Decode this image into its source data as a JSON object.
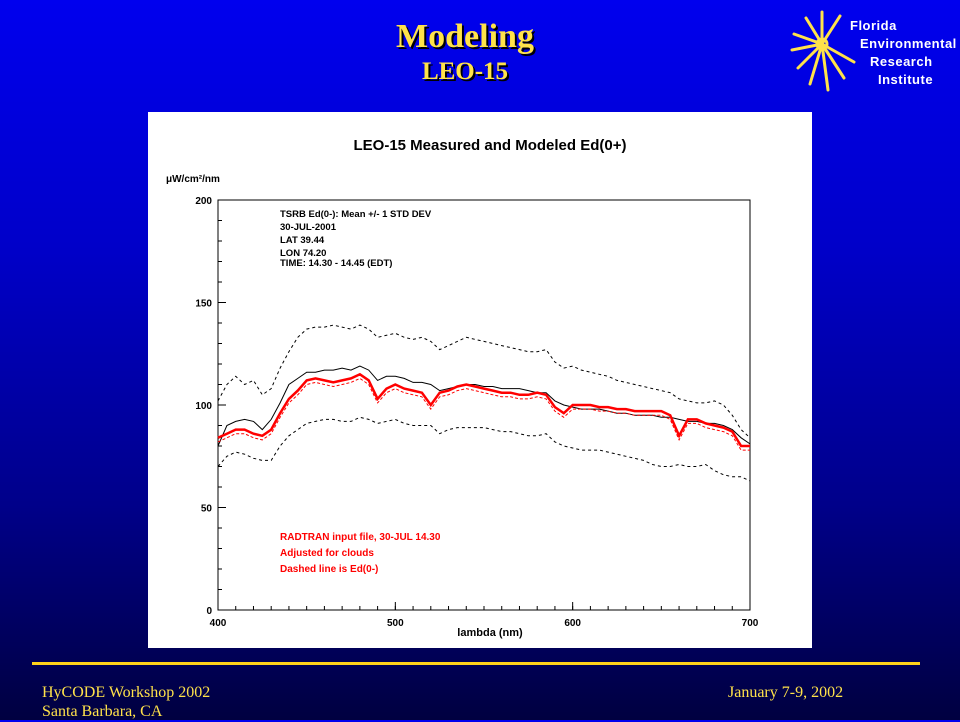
{
  "slide": {
    "title": "Modeling",
    "subtitle": "LEO-15"
  },
  "logo": {
    "lines": [
      "Florida",
      "Environmental",
      "Research",
      "Institute"
    ]
  },
  "footer": {
    "left_line1": "HyCODE Workshop 2002",
    "left_line2": "Santa Barbara, CA",
    "right": "January 7-9, 2002"
  },
  "colors": {
    "title": "#ffe24a",
    "measured": "#000000",
    "modeled": "#ff0000",
    "rule": "#ffd21a"
  },
  "chart_data": {
    "type": "line",
    "title": "LEO-15 Measured and Modeled Ed(0+)",
    "xlabel": "lambda (nm)",
    "ylabel": "μW/cm²/nm",
    "xlim": [
      400,
      700
    ],
    "ylim": [
      0,
      200
    ],
    "xticks": [
      "400",
      "500",
      "600",
      "700"
    ],
    "yticks": [
      "0",
      "50",
      "100",
      "150",
      "200"
    ],
    "grid": false,
    "annotations_black": [
      "TSRB Ed(0-): Mean +/- 1 STD DEV",
      "30-JUL-2001",
      "LAT 39.44",
      "LON 74.20",
      "TIME: 14.30 - 14.45 (EDT)"
    ],
    "annotations_red": [
      "RADTRAN input file, 30-JUL 14.30",
      "Adjusted for clouds",
      "Dashed line is Ed(0-)"
    ],
    "x": [
      400,
      405,
      410,
      415,
      420,
      425,
      430,
      435,
      440,
      445,
      450,
      455,
      460,
      465,
      470,
      475,
      480,
      485,
      490,
      495,
      500,
      505,
      510,
      515,
      520,
      525,
      530,
      535,
      540,
      545,
      550,
      555,
      560,
      565,
      570,
      575,
      580,
      585,
      590,
      595,
      600,
      605,
      610,
      615,
      620,
      625,
      630,
      635,
      640,
      645,
      650,
      655,
      660,
      665,
      670,
      675,
      680,
      685,
      690,
      695,
      700
    ],
    "series": [
      {
        "style": "black-dashed-upper",
        "values": [
          102,
          110,
          114,
          110,
          112,
          105,
          108,
          118,
          126,
          133,
          137,
          138,
          138,
          139,
          138,
          137,
          139,
          137,
          133,
          134,
          135,
          133,
          132,
          133,
          131,
          127,
          129,
          131,
          133,
          132,
          131,
          130,
          129,
          128,
          127,
          126,
          126,
          127,
          121,
          118,
          119,
          117,
          116,
          115,
          114,
          112,
          111,
          110,
          109,
          108,
          107,
          106,
          103,
          102,
          101,
          101,
          102,
          100,
          95,
          88,
          84
        ]
      },
      {
        "style": "black-dashed-lower",
        "values": [
          70,
          75,
          77,
          76,
          74,
          73,
          73,
          80,
          85,
          88,
          91,
          92,
          93,
          93,
          92,
          92,
          94,
          93,
          91,
          92,
          93,
          91,
          90,
          90,
          90,
          86,
          88,
          89,
          89,
          89,
          89,
          88,
          87,
          87,
          86,
          85,
          85,
          86,
          82,
          80,
          79,
          78,
          78,
          78,
          77,
          76,
          75,
          74,
          73,
          71,
          70,
          70,
          71,
          70,
          70,
          71,
          68,
          66,
          65,
          65,
          63
        ]
      },
      {
        "style": "black-solid",
        "values": [
          80,
          90,
          92,
          93,
          92,
          88,
          93,
          101,
          110,
          113,
          116,
          116,
          117,
          117,
          118,
          117,
          119,
          117,
          112,
          114,
          114,
          113,
          111,
          111,
          110,
          107,
          108,
          109,
          110,
          110,
          109,
          109,
          108,
          108,
          108,
          107,
          106,
          106,
          102,
          100,
          99,
          98,
          98,
          98,
          97,
          96,
          96,
          95,
          95,
          95,
          94,
          94,
          93,
          92,
          92,
          91,
          91,
          90,
          88,
          84,
          81
        ]
      },
      {
        "style": "red-solid",
        "values": [
          84,
          86,
          88,
          88,
          86,
          85,
          88,
          96,
          103,
          107,
          112,
          113,
          112,
          111,
          112,
          113,
          115,
          112,
          103,
          108,
          110,
          108,
          107,
          106,
          100,
          106,
          107,
          109,
          110,
          109,
          108,
          107,
          106,
          106,
          105,
          105,
          106,
          105,
          99,
          96,
          100,
          100,
          100,
          99,
          99,
          98,
          98,
          97,
          97,
          97,
          97,
          95,
          85,
          93,
          93,
          91,
          90,
          89,
          87,
          80,
          80
        ]
      },
      {
        "style": "red-dashed",
        "values": [
          82,
          84,
          86,
          86,
          84,
          83,
          86,
          94,
          101,
          105,
          110,
          111,
          110,
          109,
          110,
          111,
          113,
          110,
          101,
          106,
          108,
          106,
          105,
          104,
          98,
          104,
          105,
          107,
          108,
          107,
          106,
          105,
          104,
          104,
          103,
          103,
          104,
          103,
          97,
          94,
          98,
          98,
          98,
          97,
          97,
          96,
          96,
          95,
          95,
          95,
          95,
          93,
          83,
          91,
          91,
          89,
          88,
          87,
          85,
          78,
          78
        ]
      }
    ]
  }
}
